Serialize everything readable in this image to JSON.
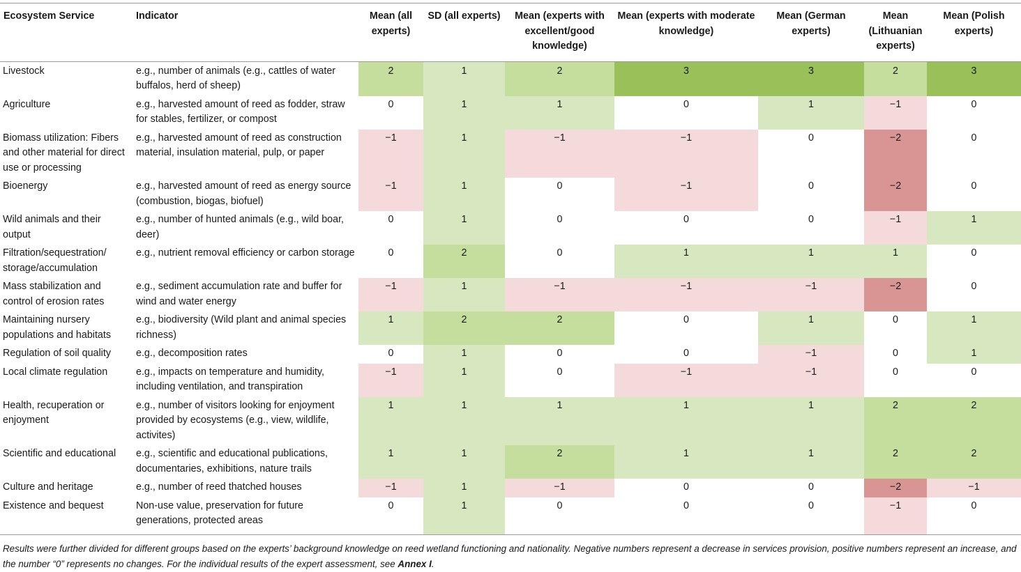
{
  "colors": {
    "g1": "#d7e7bf",
    "g2": "#c5dd9d",
    "g3": "#9ac05a",
    "r1": "#f4dadb",
    "r2": "#d99593",
    "none": "#ffffff"
  },
  "headers": [
    "Ecosystem Service",
    "Indicator",
    "Mean (all experts)",
    "SD (all experts)",
    "Mean (experts with excellent/good knowledge)",
    "Mean (experts with moderate knowledge)",
    "Mean (German experts)",
    "Mean (Lithuanian experts)",
    "Mean (Polish experts)"
  ],
  "rows": [
    {
      "service": "Livestock",
      "indicator": "e.g., number of animals (e.g., cattles of water buffalos, herd of sheep)",
      "values": [
        "2",
        "1",
        "2",
        "3",
        "3",
        "2",
        "3"
      ]
    },
    {
      "service": "Agriculture",
      "indicator": "e.g., harvested amount of reed as fodder, straw for stables, fertilizer, or compost",
      "values": [
        "0",
        "1",
        "1",
        "0",
        "1",
        "−1",
        "0"
      ]
    },
    {
      "service": "Biomass utilization: Fibers and other material for direct use or processing",
      "indicator": "e.g., harvested amount of reed as construction material, insulation material, pulp, or paper",
      "values": [
        "−1",
        "1",
        "−1",
        "−1",
        "0",
        "−2",
        "0"
      ]
    },
    {
      "service": "Bioenergy",
      "indicator": "e.g., harvested amount of reed as energy source (combustion, biogas, biofuel)",
      "values": [
        "−1",
        "1",
        "0",
        "−1",
        "0",
        "−2",
        "0"
      ]
    },
    {
      "service": "Wild animals and their output",
      "indicator": "e.g., number of hunted animals (e.g., wild boar, deer)",
      "values": [
        "0",
        "1",
        "0",
        "0",
        "0",
        "−1",
        "1"
      ]
    },
    {
      "service": "Filtration/sequestration/ storage/accumulation",
      "indicator": "e.g., nutrient removal efficiency or carbon storage",
      "values": [
        "0",
        "2",
        "0",
        "1",
        "1",
        "1",
        "0"
      ]
    },
    {
      "service": "Mass stabilization and control of erosion rates",
      "indicator": "e.g., sediment accumulation rate and buffer for wind and water energy",
      "values": [
        "−1",
        "1",
        "−1",
        "−1",
        "−1",
        "−2",
        "0"
      ]
    },
    {
      "service": "Maintaining nursery populations and habitats",
      "indicator": "e.g., biodiversity (Wild plant and animal species richness)",
      "values": [
        "1",
        "2",
        "2",
        "0",
        "1",
        "0",
        "1"
      ]
    },
    {
      "service": "Regulation of soil quality",
      "indicator": "e.g., decomposition rates",
      "values": [
        "0",
        "1",
        "0",
        "0",
        "−1",
        "0",
        "1"
      ]
    },
    {
      "service": "Local climate regulation",
      "indicator": "e.g., impacts on temperature and humidity, including ventilation, and transpiration",
      "values": [
        "−1",
        "1",
        "0",
        "−1",
        "−1",
        "0",
        "0"
      ]
    },
    {
      "service": "Health, recuperation or enjoyment",
      "indicator": "e.g., number of visitors looking for enjoyment provided by ecosystems (e.g., view, wildlife, activites)",
      "values": [
        "1",
        "1",
        "1",
        "1",
        "1",
        "2",
        "2"
      ]
    },
    {
      "service": "Scientific and educational",
      "indicator": "e.g., scientific and educational publications, documentaries, exhibitions, nature trails",
      "values": [
        "1",
        "1",
        "2",
        "1",
        "1",
        "2",
        "2"
      ]
    },
    {
      "service": "Culture and heritage",
      "indicator": "e.g., number of reed thatched houses",
      "values": [
        "−1",
        "1",
        "−1",
        "0",
        "0",
        "−2",
        "−1"
      ]
    },
    {
      "service": "Existence and bequest",
      "indicator": "Non-use value, preservation for future generations, protected areas",
      "values": [
        "0",
        "1",
        "0",
        "0",
        "0",
        "−1",
        "0"
      ]
    }
  ],
  "cell_shades": [
    [
      "g2",
      "g1",
      "g2",
      "g3",
      "g3",
      "g2",
      "g3"
    ],
    [
      "none",
      "g1",
      "g1",
      "none",
      "g1",
      "r1",
      "none"
    ],
    [
      "r1",
      "g1",
      "r1",
      "r1",
      "none",
      "r2",
      "none"
    ],
    [
      "r1",
      "g1",
      "none",
      "r1",
      "none",
      "r2",
      "none"
    ],
    [
      "none",
      "g1",
      "none",
      "none",
      "none",
      "r1",
      "g1"
    ],
    [
      "none",
      "g2",
      "none",
      "g1",
      "g1",
      "g1",
      "none"
    ],
    [
      "r1",
      "g1",
      "r1",
      "r1",
      "r1",
      "r2",
      "none"
    ],
    [
      "g1",
      "g2",
      "g2",
      "none",
      "g1",
      "none",
      "g1"
    ],
    [
      "none",
      "g1",
      "none",
      "none",
      "r1",
      "none",
      "g1"
    ],
    [
      "r1",
      "g1",
      "none",
      "r1",
      "r1",
      "none",
      "none"
    ],
    [
      "g1",
      "g1",
      "g1",
      "g1",
      "g1",
      "g2",
      "g2"
    ],
    [
      "g1",
      "g1",
      "g2",
      "g1",
      "g1",
      "g2",
      "g2"
    ],
    [
      "r1",
      "g1",
      "r1",
      "none",
      "none",
      "r2",
      "r1"
    ],
    [
      "none",
      "g1",
      "none",
      "none",
      "none",
      "r1",
      "none"
    ]
  ],
  "footnote": {
    "text": "Results were further divided for different groups based on the experts’ background knowledge on reed wetland functioning and nationality. Negative numbers represent a decrease in services provision, positive numbers represent an increase, and the number “0” represents no changes. For the individual results of the expert assessment, see ",
    "annex": "Annex I",
    "end": "."
  }
}
